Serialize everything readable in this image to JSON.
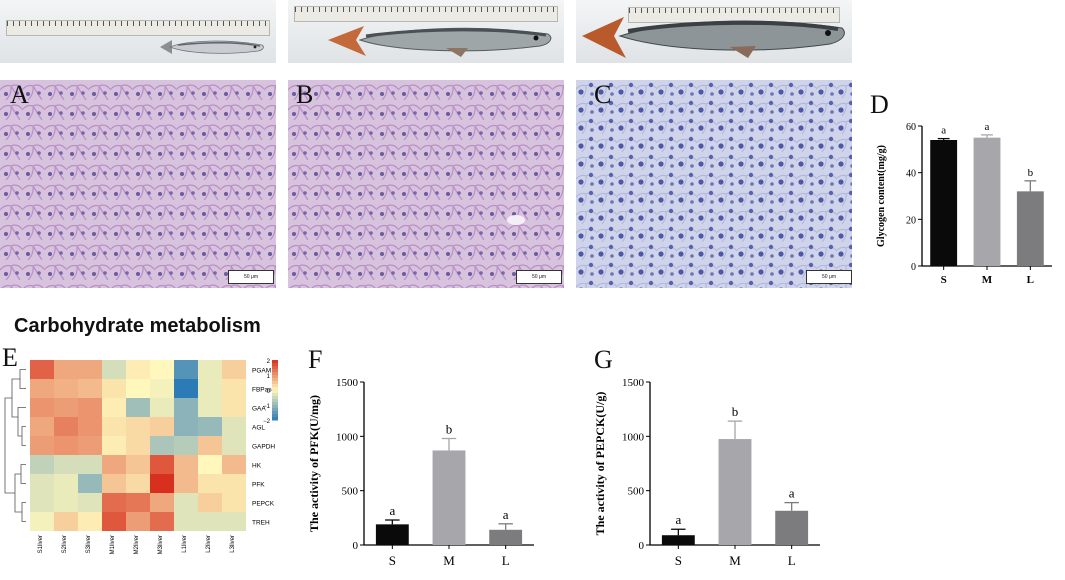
{
  "colors": {
    "S": "#0a0a0a",
    "M": "#a6a6ab",
    "L": "#7c7c7e",
    "heat_high": "#d7301f",
    "heat_mid": "#fff7bc",
    "heat_low": "#2c7bb6"
  },
  "panels": {
    "A": "A",
    "B": "B",
    "C": "C",
    "D": "D",
    "E": "E",
    "F": "F",
    "G": "G"
  },
  "scale_bar_label": "50 μm",
  "section_title": "Carbohydrate metabolism",
  "chart_data": [
    {
      "id": "D",
      "type": "bar",
      "categories": [
        "S",
        "M",
        "L"
      ],
      "values": [
        54,
        55,
        32
      ],
      "errors": [
        0.6,
        1.2,
        4.5
      ],
      "significance": [
        "a",
        "a",
        "b"
      ],
      "ylabel": "Glycogen content(mg/g)",
      "ylim": [
        0,
        60
      ],
      "yticks": [
        0,
        20,
        40,
        60
      ]
    },
    {
      "id": "E",
      "type": "heatmap",
      "rows": [
        "PGAM",
        "FBPase",
        "GAA",
        "AGL",
        "GAPDH",
        "HK",
        "PFK",
        "PEPCK",
        "TREH"
      ],
      "columns": [
        "S1liver",
        "S2liver",
        "S3liver",
        "M1liver",
        "M2liver",
        "M3liver",
        "L1liver",
        "L2liver",
        "L3liver"
      ],
      "values": [
        [
          1.5,
          0.8,
          0.8,
          -0.4,
          0.1,
          0.0,
          -1.6,
          -0.2,
          0.4
        ],
        [
          0.8,
          0.7,
          0.6,
          0.2,
          0.0,
          -0.1,
          -2.0,
          -0.2,
          0.2
        ],
        [
          1.0,
          0.9,
          1.0,
          0.1,
          -0.9,
          -0.2,
          -1.1,
          -0.2,
          0.2
        ],
        [
          0.8,
          1.2,
          1.0,
          0.2,
          0.3,
          0.4,
          -1.1,
          -1.0,
          -0.3
        ],
        [
          0.9,
          1.0,
          0.9,
          0.1,
          0.3,
          -0.8,
          -0.7,
          0.5,
          -0.3
        ],
        [
          -0.6,
          -0.4,
          -0.4,
          0.8,
          0.5,
          1.6,
          0.6,
          0.0,
          0.6
        ],
        [
          -0.3,
          -0.2,
          -1.0,
          0.5,
          0.3,
          2.0,
          0.6,
          0.2,
          0.2
        ],
        [
          -0.3,
          -0.2,
          -0.3,
          1.4,
          1.3,
          0.8,
          -0.3,
          0.4,
          0.2
        ],
        [
          -0.1,
          0.4,
          0.1,
          1.6,
          0.9,
          1.4,
          -0.3,
          -0.3,
          -0.3
        ]
      ],
      "scale_range": [
        -2,
        2
      ],
      "scale_ticks": [
        "2",
        "1",
        "0",
        "−1",
        "−2"
      ]
    },
    {
      "id": "F",
      "type": "bar",
      "categories": [
        "S",
        "M",
        "L"
      ],
      "values": [
        190,
        870,
        140
      ],
      "errors": [
        40,
        110,
        55
      ],
      "significance": [
        "a",
        "b",
        "a"
      ],
      "ylabel": "The activity of PFK(U/mg)",
      "ylim": [
        0,
        1500
      ],
      "yticks": [
        0,
        500,
        1000,
        1500
      ]
    },
    {
      "id": "G",
      "type": "bar",
      "categories": [
        "S",
        "M",
        "L"
      ],
      "values": [
        90,
        975,
        315
      ],
      "errors": [
        55,
        165,
        75
      ],
      "significance": [
        "a",
        "b",
        "a"
      ],
      "ylabel": "The activity of PEPCK(U/g)",
      "ylim": [
        0,
        1500
      ],
      "yticks": [
        0,
        500,
        1000,
        1500
      ]
    }
  ]
}
